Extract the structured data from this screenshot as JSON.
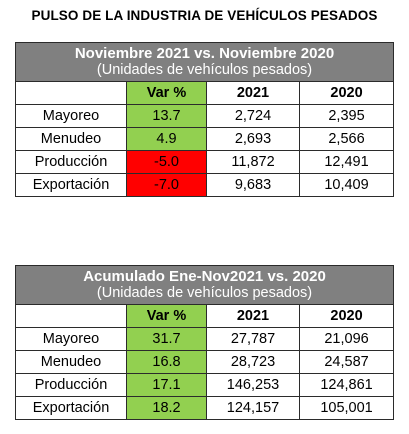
{
  "page_title": "PULSO DE LA INDUSTRIA DE VEHÍCULOS PESADOS",
  "colors": {
    "header_bg": "#808080",
    "positive": "#92d050",
    "negative": "#ff0000"
  },
  "tables": [
    {
      "title": "Noviembre 2021 vs. Noviembre 2020",
      "subtitle": "(Unidades de vehículos pesados)",
      "columns": [
        "",
        "Var %",
        "2021",
        "2020"
      ],
      "rows": [
        {
          "label": "Mayoreo",
          "var": "13.7",
          "var_status": "positive",
          "y2021": "2,724",
          "y2020": "2,395"
        },
        {
          "label": "Menudeo",
          "var": "4.9",
          "var_status": "positive",
          "y2021": "2,693",
          "y2020": "2,566"
        },
        {
          "label": "Producción",
          "var": "-5.0",
          "var_status": "negative",
          "y2021": "11,872",
          "y2020": "12,491"
        },
        {
          "label": "Exportación",
          "var": "-7.0",
          "var_status": "negative",
          "y2021": "9,683",
          "y2020": "10,409"
        }
      ]
    },
    {
      "title": "Acumulado Ene-Nov2021 vs. 2020",
      "subtitle": "(Unidades de vehículos pesados)",
      "columns": [
        "",
        "Var %",
        "2021",
        "2020"
      ],
      "rows": [
        {
          "label": "Mayoreo",
          "var": "31.7",
          "var_status": "positive",
          "y2021": "27,787",
          "y2020": "21,096"
        },
        {
          "label": "Menudeo",
          "var": "16.8",
          "var_status": "positive",
          "y2021": "28,723",
          "y2020": "24,587"
        },
        {
          "label": "Producción",
          "var": "17.1",
          "var_status": "positive",
          "y2021": "146,253",
          "y2020": "124,861"
        },
        {
          "label": "Exportación",
          "var": "18.2",
          "var_status": "positive",
          "y2021": "124,157",
          "y2020": "105,001"
        }
      ]
    }
  ]
}
